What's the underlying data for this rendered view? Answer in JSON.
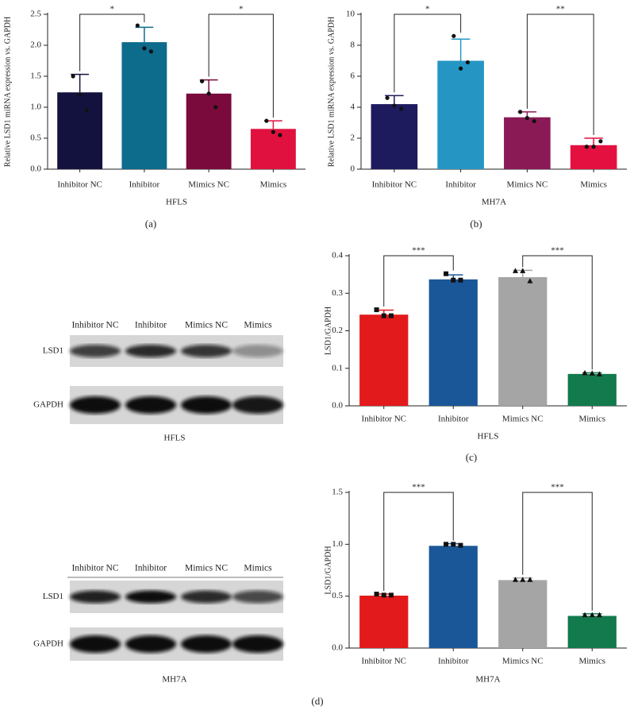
{
  "chart_data": [
    {
      "type": "bar",
      "ylabel": "Relative LSD1 miRNA expression vs. GAPDH",
      "xlabel": "HFLS",
      "categories": [
        "Inhibitor NC",
        "Inhibitor",
        "Mimics NC",
        "Mimics"
      ],
      "values": [
        1.24,
        2.05,
        1.22,
        0.65
      ],
      "errors": [
        0.29,
        0.24,
        0.22,
        0.13
      ],
      "points": [
        [
          1.5,
          1.2,
          0.95
        ],
        [
          2.32,
          1.95,
          1.9
        ],
        [
          1.42,
          1.22,
          1.0
        ],
        [
          0.78,
          0.6,
          0.55
        ]
      ],
      "colors": [
        "#13123f",
        "#0d6b8c",
        "#7a0a3c",
        "#e0113f"
      ],
      "annotations": [
        "*",
        "*"
      ],
      "ylim": [
        0,
        2.5
      ],
      "yticks": [
        {
          "value": 0,
          "label": "0.0"
        },
        0.5,
        {
          "value": 1,
          "label": "1.0"
        },
        1.5,
        {
          "value": 2,
          "label": "2.0"
        },
        2.5
      ]
    },
    {
      "type": "bar",
      "ylabel": "Relative LSD1 miRNA expression vs. GAPDH",
      "xlabel": "MH7A",
      "categories": [
        "Inhibitor NC",
        "Inhibitor",
        "Mimics NC",
        "Mimics"
      ],
      "values": [
        4.2,
        7.0,
        3.35,
        1.55
      ],
      "errors": [
        0.55,
        1.4,
        0.35,
        0.45
      ],
      "points": [
        [
          4.6,
          4.1,
          3.9
        ],
        [
          8.6,
          6.5,
          6.9
        ],
        [
          3.7,
          3.3,
          3.1
        ],
        [
          1.45,
          1.45,
          1.8
        ]
      ],
      "colors": [
        "#1d1a5e",
        "#2596c4",
        "#8a1a55",
        "#e4103f"
      ],
      "annotations": [
        "*",
        "**"
      ],
      "ylim": [
        0,
        10
      ],
      "yticks": [
        0,
        2,
        4,
        6,
        8,
        10
      ]
    },
    {
      "type": "bar",
      "ylabel": "LSD1/GAPDH",
      "xlabel": "HFLS",
      "categories": [
        "Inhibitor NC",
        "Inhibitor",
        "Mimics NC",
        "Mimics"
      ],
      "values": [
        0.243,
        0.337,
        0.343,
        0.085
      ],
      "errors": [
        0.012,
        0.012,
        0.018,
        0.003
      ],
      "points": [
        [
          0.256,
          0.24,
          0.24
        ],
        [
          0.352,
          0.335,
          0.335
        ],
        [
          0.36,
          0.36,
          0.333
        ],
        [
          0.088,
          0.087,
          0.085
        ]
      ],
      "colors": [
        "#e31a1c",
        "#1a5799",
        "#a5a5a5",
        "#127a4d"
      ],
      "annotations": [
        "***",
        "***"
      ],
      "ylim": [
        0,
        0.4
      ],
      "yticks": [
        {
          "value": 0,
          "label": "0.0"
        },
        0.1,
        0.2,
        0.3,
        0.4
      ]
    },
    {
      "type": "bar",
      "ylabel": "LSD1/GAPDH",
      "xlabel": "MH7A",
      "categories": [
        "Inhibitor NC",
        "Inhibitor",
        "Mimics NC",
        "Mimics"
      ],
      "values": [
        0.505,
        0.985,
        0.655,
        0.31
      ],
      "errors": [
        0.015,
        0.02,
        0.02,
        0.02
      ],
      "points": [
        [
          0.52,
          0.51,
          0.51
        ],
        [
          1.0,
          1.0,
          0.99
        ],
        [
          0.66,
          0.66,
          0.66
        ],
        [
          0.32,
          0.32,
          0.32
        ]
      ],
      "colors": [
        "#e31a1c",
        "#1a5799",
        "#a5a5a5",
        "#127a4d"
      ],
      "annotations": [
        "***",
        "***"
      ],
      "ylim": [
        0,
        1.5
      ],
      "yticks": [
        {
          "value": 0,
          "label": "0.0"
        },
        0.5,
        {
          "value": 1,
          "label": "1.0"
        },
        1.5
      ]
    }
  ],
  "blots": [
    {
      "lanes": [
        "Inhibitor NC",
        "Inhibitor",
        "Mimics NC",
        "Mimics"
      ],
      "rows": [
        "LSD1",
        "GAPDH"
      ],
      "cell": "HFLS"
    },
    {
      "lanes": [
        "Inhibitor NC",
        "Inhibitor",
        "Mimics NC",
        "Mimics"
      ],
      "rows": [
        "LSD1",
        "GAPDH"
      ],
      "cell": "MH7A"
    }
  ],
  "panel_labels": [
    "(a)",
    "(b)",
    "(c)",
    "(d)"
  ]
}
